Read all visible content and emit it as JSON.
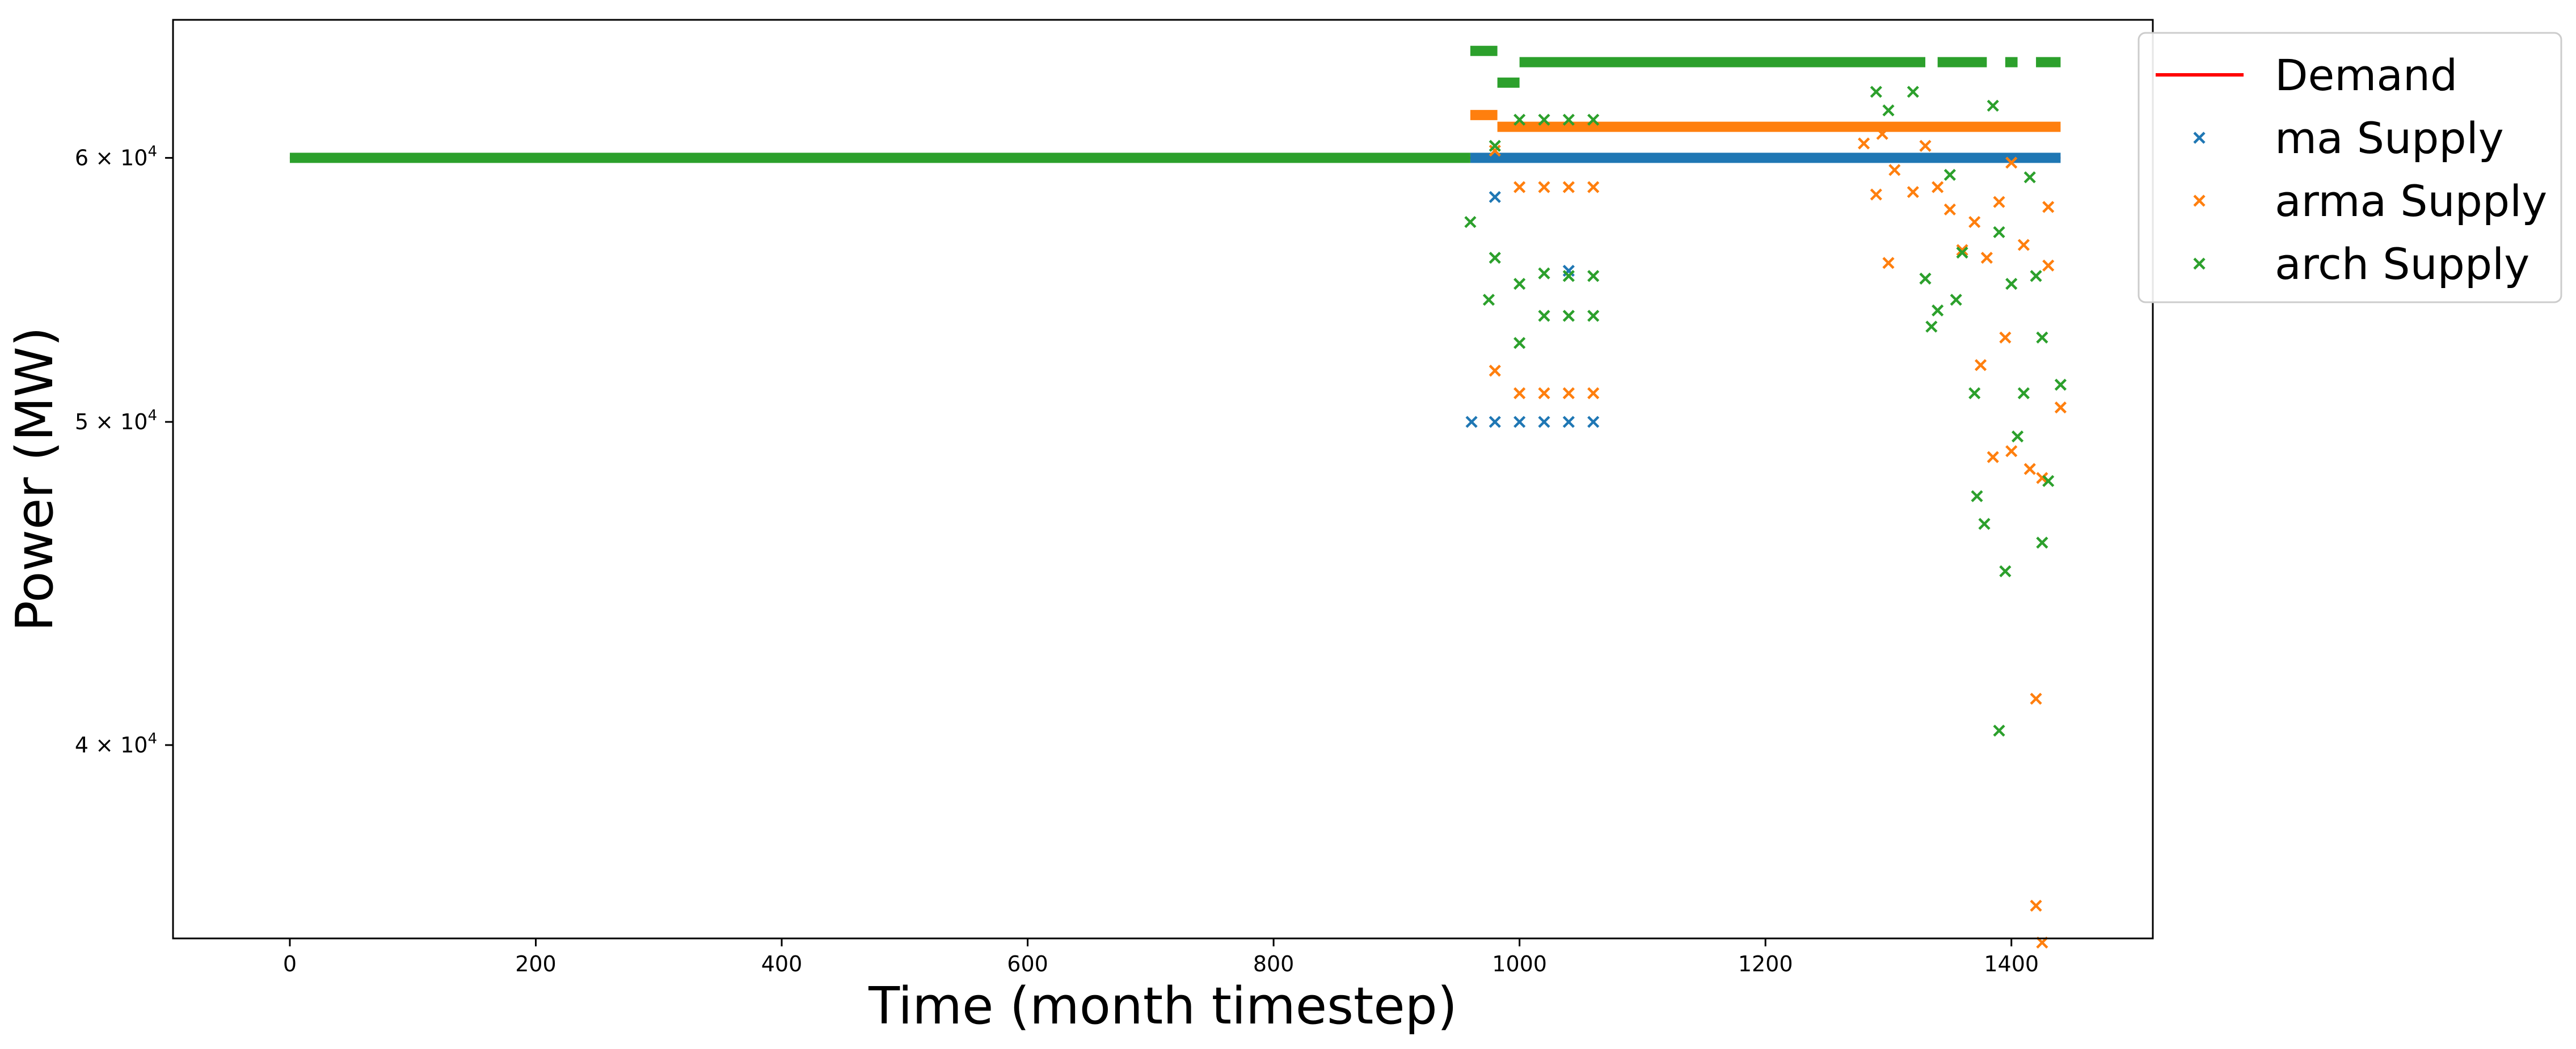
{
  "chart_data": {
    "type": "scatter",
    "title": "",
    "xlabel": "Time (month timestep)",
    "ylabel": "Power (MW)",
    "xlim": [
      -95,
      1515
    ],
    "ylim": [
      35000,
      66000
    ],
    "yscale": "log",
    "grid": false,
    "legend_position": "upper right, outside plot",
    "x_ticks": [
      0,
      200,
      400,
      600,
      800,
      1000,
      1200,
      1400
    ],
    "y_ticks": [
      {
        "value": 40000,
        "mantissa": "4",
        "base": "10",
        "exponent": "4"
      },
      {
        "value": 50000,
        "mantissa": "5",
        "base": "10",
        "exponent": "4"
      },
      {
        "value": 60000,
        "mantissa": "6",
        "base": "10",
        "exponent": "4"
      }
    ],
    "series": [
      {
        "name": "Demand",
        "marker": "line",
        "color": "#ff0000",
        "segments": [
          [
            0,
            60000,
            1440,
            60000
          ]
        ],
        "points": []
      },
      {
        "name": "ma Supply",
        "marker": "x",
        "color": "#1f77b4",
        "segments": [
          [
            960,
            60000,
            1440,
            60000
          ]
        ],
        "points": [
          [
            961,
            50000
          ],
          [
            980,
            58400
          ],
          [
            980,
            50000
          ],
          [
            1000,
            50000
          ],
          [
            1020,
            50000
          ],
          [
            1040,
            50000
          ],
          [
            1040,
            55500
          ],
          [
            1060,
            50000
          ]
        ]
      },
      {
        "name": "arma Supply",
        "marker": "x",
        "color": "#ff7f0e",
        "segments": [
          [
            960,
            61800,
            982,
            61800
          ],
          [
            982,
            61300,
            1440,
            61300
          ]
        ],
        "points": [
          [
            980,
            60300
          ],
          [
            980,
            51800
          ],
          [
            1000,
            58800
          ],
          [
            1000,
            51000
          ],
          [
            1020,
            58800
          ],
          [
            1020,
            51000
          ],
          [
            1040,
            58800
          ],
          [
            1040,
            51000
          ],
          [
            1060,
            58800
          ],
          [
            1060,
            51000
          ],
          [
            1280,
            60600
          ],
          [
            1290,
            58500
          ],
          [
            1295,
            61000
          ],
          [
            1300,
            55800
          ],
          [
            1305,
            59500
          ],
          [
            1320,
            58600
          ],
          [
            1330,
            60500
          ],
          [
            1340,
            58800
          ],
          [
            1350,
            57900
          ],
          [
            1360,
            56300
          ],
          [
            1370,
            57400
          ],
          [
            1375,
            52000
          ],
          [
            1380,
            56000
          ],
          [
            1385,
            48800
          ],
          [
            1390,
            58200
          ],
          [
            1395,
            53000
          ],
          [
            1400,
            59800
          ],
          [
            1400,
            49000
          ],
          [
            1410,
            56500
          ],
          [
            1415,
            48400
          ],
          [
            1420,
            41300
          ],
          [
            1425,
            48100
          ],
          [
            1430,
            58000
          ],
          [
            1420,
            35800
          ],
          [
            1425,
            34900
          ],
          [
            1430,
            55700
          ],
          [
            1440,
            50500
          ]
        ]
      },
      {
        "name": "arch Supply",
        "marker": "x",
        "color": "#2ca02c",
        "segments": [
          [
            0,
            60000,
            960,
            60000
          ],
          [
            960,
            64600,
            982,
            64600
          ],
          [
            982,
            63200,
            1000,
            63200
          ],
          [
            1000,
            64100,
            1330,
            64100
          ],
          [
            1340,
            64100,
            1380,
            64100
          ],
          [
            1395,
            64100,
            1405,
            64100
          ],
          [
            1420,
            64100,
            1440,
            64100
          ]
        ],
        "points": [
          [
            960,
            57400
          ],
          [
            975,
            54400
          ],
          [
            980,
            56000
          ],
          [
            980,
            60500
          ],
          [
            1000,
            52800
          ],
          [
            1000,
            55000
          ],
          [
            1000,
            61600
          ],
          [
            1020,
            53800
          ],
          [
            1020,
            55400
          ],
          [
            1020,
            61600
          ],
          [
            1040,
            53800
          ],
          [
            1040,
            55300
          ],
          [
            1040,
            61600
          ],
          [
            1060,
            53800
          ],
          [
            1060,
            55300
          ],
          [
            1060,
            61600
          ],
          [
            1290,
            62800
          ],
          [
            1300,
            62000
          ],
          [
            1320,
            62800
          ],
          [
            1330,
            55200
          ],
          [
            1335,
            53400
          ],
          [
            1340,
            54000
          ],
          [
            1350,
            59300
          ],
          [
            1355,
            54400
          ],
          [
            1360,
            56200
          ],
          [
            1370,
            51000
          ],
          [
            1372,
            47500
          ],
          [
            1378,
            46600
          ],
          [
            1385,
            62200
          ],
          [
            1390,
            57000
          ],
          [
            1395,
            45100
          ],
          [
            1390,
            40400
          ],
          [
            1400,
            55000
          ],
          [
            1405,
            49500
          ],
          [
            1410,
            51000
          ],
          [
            1415,
            59200
          ],
          [
            1420,
            55300
          ],
          [
            1425,
            53000
          ],
          [
            1425,
            46000
          ],
          [
            1430,
            48000
          ],
          [
            1440,
            51300
          ]
        ]
      }
    ]
  }
}
